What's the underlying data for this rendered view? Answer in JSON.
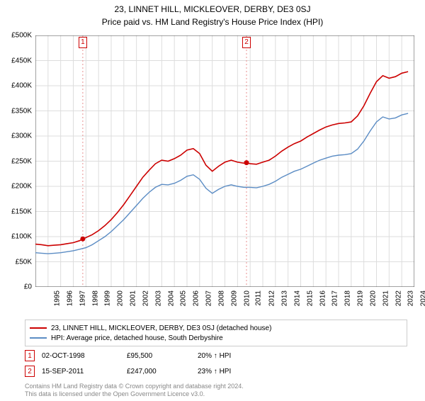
{
  "title": "23, LINNET HILL, MICKLEOVER, DERBY, DE3 0SJ",
  "subtitle": "Price paid vs. HM Land Registry's House Price Index (HPI)",
  "chart": {
    "type": "line",
    "background_color": "#ffffff",
    "grid_color": "#dddddd",
    "axis_color": "#444444",
    "ylim": [
      0,
      500000
    ],
    "ytick_step": 50000,
    "yticks": [
      "£0",
      "£50K",
      "£100K",
      "£150K",
      "£200K",
      "£250K",
      "£300K",
      "£350K",
      "£400K",
      "£450K",
      "£500K"
    ],
    "xlim": [
      1995,
      2025
    ],
    "xticks": [
      "1995",
      "1996",
      "1997",
      "1998",
      "1999",
      "2000",
      "2001",
      "2002",
      "2003",
      "2004",
      "2005",
      "2006",
      "2007",
      "2008",
      "2009",
      "2010",
      "2011",
      "2012",
      "2013",
      "2014",
      "2015",
      "2016",
      "2017",
      "2018",
      "2019",
      "2020",
      "2021",
      "2022",
      "2023",
      "2024",
      "2025"
    ],
    "series": [
      {
        "name": "property",
        "color": "#cc0000",
        "width": 1.6,
        "points": [
          [
            1995,
            85000
          ],
          [
            1995.5,
            84000
          ],
          [
            1996,
            82000
          ],
          [
            1996.5,
            83000
          ],
          [
            1997,
            84000
          ],
          [
            1997.5,
            86000
          ],
          [
            1998,
            88000
          ],
          [
            1998.5,
            92000
          ],
          [
            1998.75,
            95500
          ],
          [
            1999,
            98000
          ],
          [
            1999.5,
            104000
          ],
          [
            2000,
            112000
          ],
          [
            2000.5,
            122000
          ],
          [
            2001,
            134000
          ],
          [
            2001.5,
            148000
          ],
          [
            2002,
            164000
          ],
          [
            2002.5,
            182000
          ],
          [
            2003,
            200000
          ],
          [
            2003.5,
            218000
          ],
          [
            2004,
            232000
          ],
          [
            2004.5,
            245000
          ],
          [
            2005,
            252000
          ],
          [
            2005.5,
            250000
          ],
          [
            2006,
            255000
          ],
          [
            2006.5,
            262000
          ],
          [
            2007,
            272000
          ],
          [
            2007.5,
            275000
          ],
          [
            2008,
            265000
          ],
          [
            2008.5,
            242000
          ],
          [
            2009,
            230000
          ],
          [
            2009.5,
            240000
          ],
          [
            2010,
            248000
          ],
          [
            2010.5,
            252000
          ],
          [
            2011,
            248000
          ],
          [
            2011.5,
            246000
          ],
          [
            2011.71,
            247000
          ],
          [
            2012,
            245000
          ],
          [
            2012.5,
            244000
          ],
          [
            2013,
            248000
          ],
          [
            2013.5,
            252000
          ],
          [
            2014,
            260000
          ],
          [
            2014.5,
            270000
          ],
          [
            2015,
            278000
          ],
          [
            2015.5,
            285000
          ],
          [
            2016,
            290000
          ],
          [
            2016.5,
            298000
          ],
          [
            2017,
            305000
          ],
          [
            2017.5,
            312000
          ],
          [
            2018,
            318000
          ],
          [
            2018.5,
            322000
          ],
          [
            2019,
            325000
          ],
          [
            2019.5,
            326000
          ],
          [
            2020,
            328000
          ],
          [
            2020.5,
            340000
          ],
          [
            2021,
            360000
          ],
          [
            2021.5,
            385000
          ],
          [
            2022,
            408000
          ],
          [
            2022.5,
            420000
          ],
          [
            2023,
            415000
          ],
          [
            2023.5,
            418000
          ],
          [
            2024,
            425000
          ],
          [
            2024.5,
            428000
          ]
        ]
      },
      {
        "name": "hpi",
        "color": "#5b8cc4",
        "width": 1.4,
        "points": [
          [
            1995,
            68000
          ],
          [
            1995.5,
            67000
          ],
          [
            1996,
            66000
          ],
          [
            1996.5,
            67000
          ],
          [
            1997,
            68000
          ],
          [
            1997.5,
            70000
          ],
          [
            1998,
            72000
          ],
          [
            1998.5,
            75000
          ],
          [
            1999,
            78000
          ],
          [
            1999.5,
            84000
          ],
          [
            2000,
            92000
          ],
          [
            2000.5,
            100000
          ],
          [
            2001,
            110000
          ],
          [
            2001.5,
            122000
          ],
          [
            2002,
            134000
          ],
          [
            2002.5,
            148000
          ],
          [
            2003,
            162000
          ],
          [
            2003.5,
            176000
          ],
          [
            2004,
            188000
          ],
          [
            2004.5,
            198000
          ],
          [
            2005,
            204000
          ],
          [
            2005.5,
            203000
          ],
          [
            2006,
            206000
          ],
          [
            2006.5,
            212000
          ],
          [
            2007,
            220000
          ],
          [
            2007.5,
            223000
          ],
          [
            2008,
            214000
          ],
          [
            2008.5,
            196000
          ],
          [
            2009,
            186000
          ],
          [
            2009.5,
            194000
          ],
          [
            2010,
            200000
          ],
          [
            2010.5,
            203000
          ],
          [
            2011,
            200000
          ],
          [
            2011.5,
            198000
          ],
          [
            2012,
            198000
          ],
          [
            2012.5,
            197000
          ],
          [
            2013,
            200000
          ],
          [
            2013.5,
            204000
          ],
          [
            2014,
            210000
          ],
          [
            2014.5,
            218000
          ],
          [
            2015,
            224000
          ],
          [
            2015.5,
            230000
          ],
          [
            2016,
            234000
          ],
          [
            2016.5,
            240000
          ],
          [
            2017,
            246000
          ],
          [
            2017.5,
            252000
          ],
          [
            2018,
            256000
          ],
          [
            2018.5,
            260000
          ],
          [
            2019,
            262000
          ],
          [
            2019.5,
            263000
          ],
          [
            2020,
            265000
          ],
          [
            2020.5,
            274000
          ],
          [
            2021,
            290000
          ],
          [
            2021.5,
            310000
          ],
          [
            2022,
            328000
          ],
          [
            2022.5,
            338000
          ],
          [
            2023,
            334000
          ],
          [
            2023.5,
            336000
          ],
          [
            2024,
            342000
          ],
          [
            2024.5,
            345000
          ]
        ]
      }
    ],
    "sale_markers": [
      {
        "n": "1",
        "x": 1998.75,
        "y": 95500,
        "color": "#cc0000",
        "dash_color": "#e89090"
      },
      {
        "n": "2",
        "x": 2011.71,
        "y": 247000,
        "color": "#cc0000",
        "dash_color": "#e89090"
      }
    ]
  },
  "legend": {
    "items": [
      {
        "color": "#cc0000",
        "label": "23, LINNET HILL, MICKLEOVER, DERBY, DE3 0SJ (detached house)"
      },
      {
        "color": "#5b8cc4",
        "label": "HPI: Average price, detached house, South Derbyshire"
      }
    ]
  },
  "sales": [
    {
      "n": "1",
      "date": "02-OCT-1998",
      "price": "£95,500",
      "pct": "20% ↑ HPI",
      "box_color": "#cc0000"
    },
    {
      "n": "2",
      "date": "15-SEP-2011",
      "price": "£247,000",
      "pct": "23% ↑ HPI",
      "box_color": "#cc0000"
    }
  ],
  "footer_l1": "Contains HM Land Registry data © Crown copyright and database right 2024.",
  "footer_l2": "This data is licensed under the Open Government Licence v3.0."
}
